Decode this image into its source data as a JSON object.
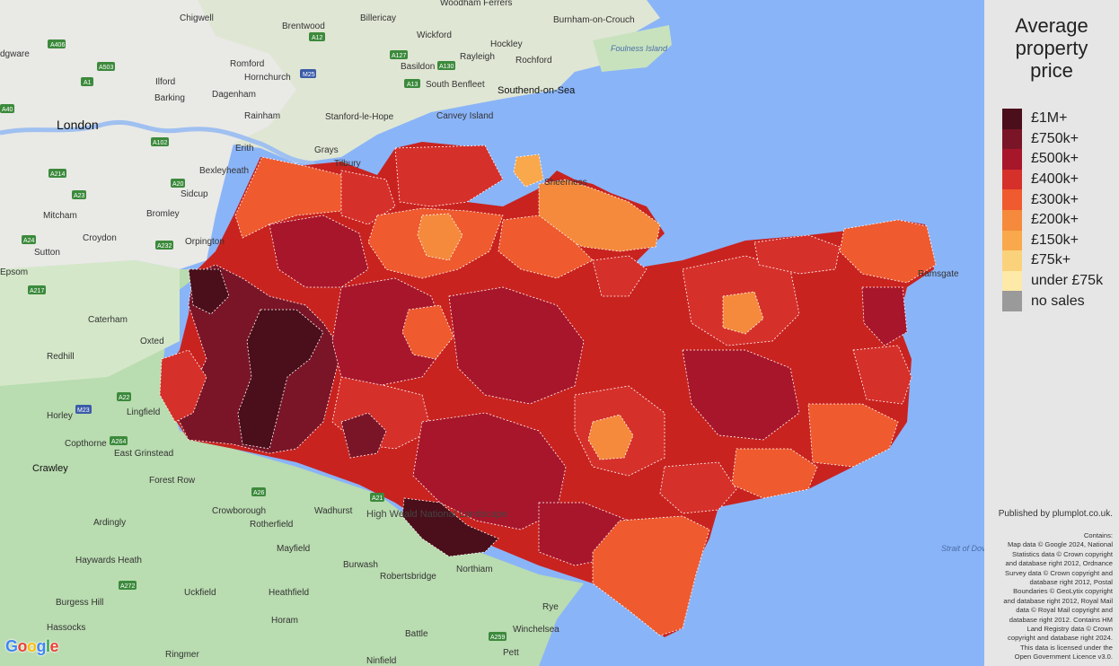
{
  "legend": {
    "title_lines": [
      "Average",
      "property",
      "price"
    ],
    "items": [
      {
        "label": "£1M+",
        "color": "#4a0f1a"
      },
      {
        "label": "£750k+",
        "color": "#7a1528"
      },
      {
        "label": "£500k+",
        "color": "#a8162b"
      },
      {
        "label": "£400k+",
        "color": "#d6302a"
      },
      {
        "label": "£300k+",
        "color": "#ef5a2e"
      },
      {
        "label": "£200k+",
        "color": "#f58a3c"
      },
      {
        "label": "£150k+",
        "color": "#f9a84c"
      },
      {
        "label": "£75k+",
        "color": "#fbd27c"
      },
      {
        "label": "under £75k",
        "color": "#fde9a8"
      },
      {
        "label": "no sales",
        "color": "#9a9a9a"
      }
    ]
  },
  "published": "Published by plumplot.co.uk.",
  "credits": [
    "Contains:",
    "Map data © Google 2024, National",
    "Statistics data © Crown copyright",
    "and database right 2012, Ordnance",
    "Survey data © Crown copyright and",
    "database right 2012, Postal",
    "Boundaries © GeoLytix copyright",
    "and database right 2012, Royal Mail",
    "data © Royal Mail copyright and",
    "database right 2012. Contains HM",
    "Land Registry data © Crown",
    "copyright and database right 2024.",
    "This data is licensed under the",
    "Open Government Licence v3.0."
  ],
  "google_logo": [
    "G",
    "o",
    "o",
    "g",
    "l",
    "e"
  ],
  "map": {
    "places": [
      "London",
      "Chigwell",
      "Brentwood",
      "Billericay",
      "Woodham Ferrers",
      "Burnham-on-Crouch",
      "Wickford",
      "Hockley",
      "Foulness Island",
      "Romford",
      "Rayleigh",
      "Rochford",
      "Basildon",
      "Ilford",
      "Hornchurch",
      "Barking",
      "Dagenham",
      "South Benfleet",
      "Southend-on-Sea",
      "Rainham",
      "Stanford-le-Hope",
      "Canvey Island",
      "Erith",
      "Grays",
      "Tilbury",
      "Bexleyheath",
      "Sidcup",
      "Mitcham",
      "Bromley",
      "Croydon",
      "Orpington",
      "Sutton",
      "Epsom",
      "Caterham",
      "Oxted",
      "Redhill",
      "Horley",
      "Lingfield",
      "Copthorne",
      "East Grinstead",
      "Crawley",
      "Forest Row",
      "Crowborough",
      "Rotherfield",
      "Wadhurst",
      "Ardingly",
      "Mayfield",
      "Haywards Heath",
      "Burwash",
      "Robertsbridge",
      "Northiam",
      "Uckfield",
      "Heathfield",
      "Burgess Hill",
      "Hassocks",
      "Horam",
      "Battle",
      "Winchelsea",
      "Rye",
      "Ringmer",
      "Ninfield",
      "Pett",
      "Sheerness",
      "Strait of Dover",
      "High Weald National Landscape",
      "dgware",
      "Ramsgate"
    ],
    "roads": [
      "A406",
      "A12",
      "A127",
      "M25",
      "A13",
      "A130",
      "A503",
      "A1",
      "A40",
      "A102",
      "A2",
      "A20",
      "A214",
      "A23",
      "A24",
      "A232",
      "A217",
      "A22",
      "M23",
      "A264",
      "A21",
      "A26",
      "A272",
      "A259",
      "A406"
    ],
    "fill_colors": {
      "sea": "#8ab4f8",
      "land_urban": "#e9e9e6",
      "land_green": "#b7dcb0",
      "land_pale": "#dcebd2",
      "border": "#ffffff"
    }
  }
}
